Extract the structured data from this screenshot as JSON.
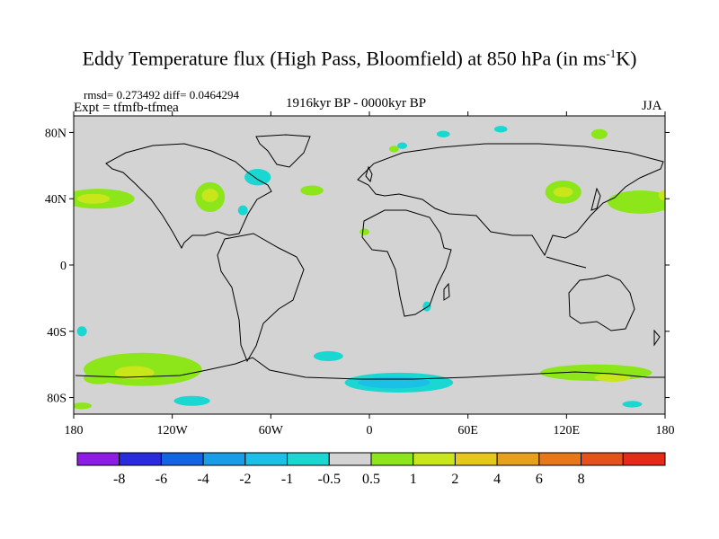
{
  "figure": {
    "title": "Eddy Temperature flux (High Pass, Bloomfield) at 850 hPa (in ms",
    "title_superscript": "-1",
    "title_end": "K)",
    "stats": "rmsd= 0.273492 diff= 0.0464294",
    "experiment": "Expt = tfmfb-tfmea",
    "period": "1916kyr BP - 0000kyr BP",
    "season": "JJA"
  },
  "map": {
    "projection": "cylindrical-equidistant",
    "background_color": "#d3d3d3",
    "lon_range": [
      -180,
      180
    ],
    "lat_range": [
      -90,
      90
    ],
    "lon_ticks": [
      {
        "value": -180,
        "label": "180"
      },
      {
        "value": -120,
        "label": "120W"
      },
      {
        "value": -60,
        "label": "60W"
      },
      {
        "value": 0,
        "label": "0"
      },
      {
        "value": 60,
        "label": "60E"
      },
      {
        "value": 120,
        "label": "120E"
      },
      {
        "value": 180,
        "label": "180"
      }
    ],
    "lat_ticks": [
      {
        "value": 80,
        "label": "80N"
      },
      {
        "value": 40,
        "label": "40N"
      },
      {
        "value": 0,
        "label": "0"
      },
      {
        "value": -40,
        "label": "40S"
      },
      {
        "value": -80,
        "label": "80S"
      }
    ],
    "anomalies": [
      {
        "lon": -165,
        "lat": 40,
        "rlon": 22,
        "rlat": 6,
        "level": 1
      },
      {
        "lon": -168,
        "lat": 40,
        "rlon": 10,
        "rlat": 3,
        "level": 2
      },
      {
        "lon": -97,
        "lat": 41,
        "rlon": 9,
        "rlat": 9,
        "level": 1
      },
      {
        "lon": -97,
        "lat": 42,
        "rlon": 5,
        "rlat": 4,
        "level": 2
      },
      {
        "lon": -68,
        "lat": 53,
        "rlon": 8,
        "rlat": 5,
        "level": -1
      },
      {
        "lon": -77,
        "lat": 33,
        "rlon": 3,
        "rlat": 3,
        "level": -1
      },
      {
        "lon": -35,
        "lat": 45,
        "rlon": 7,
        "rlat": 3,
        "level": 1
      },
      {
        "lon": 118,
        "lat": 44,
        "rlon": 11,
        "rlat": 7,
        "level": 1
      },
      {
        "lon": 118,
        "lat": 44,
        "rlon": 6,
        "rlat": 3,
        "level": 2
      },
      {
        "lon": 165,
        "lat": 38,
        "rlon": 20,
        "rlat": 7,
        "level": 1
      },
      {
        "lon": 45,
        "lat": 79,
        "rlon": 4,
        "rlat": 2,
        "level": -1
      },
      {
        "lon": 80,
        "lat": 82,
        "rlon": 4,
        "rlat": 2,
        "level": -1
      },
      {
        "lon": 140,
        "lat": 79,
        "rlon": 5,
        "rlat": 3,
        "level": 1
      },
      {
        "lon": 20,
        "lat": 72,
        "rlon": 3,
        "rlat": 2,
        "level": -1
      },
      {
        "lon": 15,
        "lat": 70,
        "rlon": 3,
        "rlat": 2,
        "level": 1
      },
      {
        "lon": -3,
        "lat": 20,
        "rlon": 3,
        "rlat": 2,
        "level": 1
      },
      {
        "lon": 35,
        "lat": -25,
        "rlon": 2.5,
        "rlat": 3,
        "level": -1
      },
      {
        "lon": 180,
        "lat": 42,
        "rlon": 4,
        "rlat": 3,
        "level": 2
      },
      {
        "lon": -138,
        "lat": -63,
        "rlon": 36,
        "rlat": 10,
        "level": 1
      },
      {
        "lon": -143,
        "lat": -65,
        "rlon": 12,
        "rlat": 4,
        "level": 2
      },
      {
        "lon": -165,
        "lat": -68,
        "rlon": 9,
        "rlat": 4,
        "level": 1
      },
      {
        "lon": -25,
        "lat": -55,
        "rlon": 9,
        "rlat": 3,
        "level": -1
      },
      {
        "lon": 18,
        "lat": -71,
        "rlon": 33,
        "rlat": 6,
        "level": -1
      },
      {
        "lon": 15,
        "lat": -71,
        "rlon": 22,
        "rlat": 3.5,
        "level": -2
      },
      {
        "lon": 138,
        "lat": -65,
        "rlon": 34,
        "rlat": 5,
        "level": 1
      },
      {
        "lon": 148,
        "lat": -68,
        "rlon": 11,
        "rlat": 2.5,
        "level": 2
      },
      {
        "lon": -108,
        "lat": -82,
        "rlon": 11,
        "rlat": 3,
        "level": -1
      },
      {
        "lon": -175,
        "lat": -85,
        "rlon": 6,
        "rlat": 2,
        "level": 1
      },
      {
        "lon": 160,
        "lat": -84,
        "rlon": 6,
        "rlat": 2,
        "level": -1
      },
      {
        "lon": -175,
        "lat": -40,
        "rlon": 3,
        "rlat": 3,
        "level": -1
      }
    ]
  },
  "colorbar": {
    "colors": [
      "#8c1ce6",
      "#2a2be0",
      "#1463e6",
      "#1a9de6",
      "#1ac0e6",
      "#1ad7d2",
      "#d3d3d3",
      "#8ce61a",
      "#c8e61a",
      "#e6c81a",
      "#e6a01a",
      "#e6781a",
      "#e6501a",
      "#e62a1a"
    ],
    "labels": [
      "-8",
      "-6",
      "-4",
      "-2",
      "-1",
      "-0.5",
      "0.5",
      "1",
      "2",
      "4",
      "6",
      "8"
    ]
  }
}
